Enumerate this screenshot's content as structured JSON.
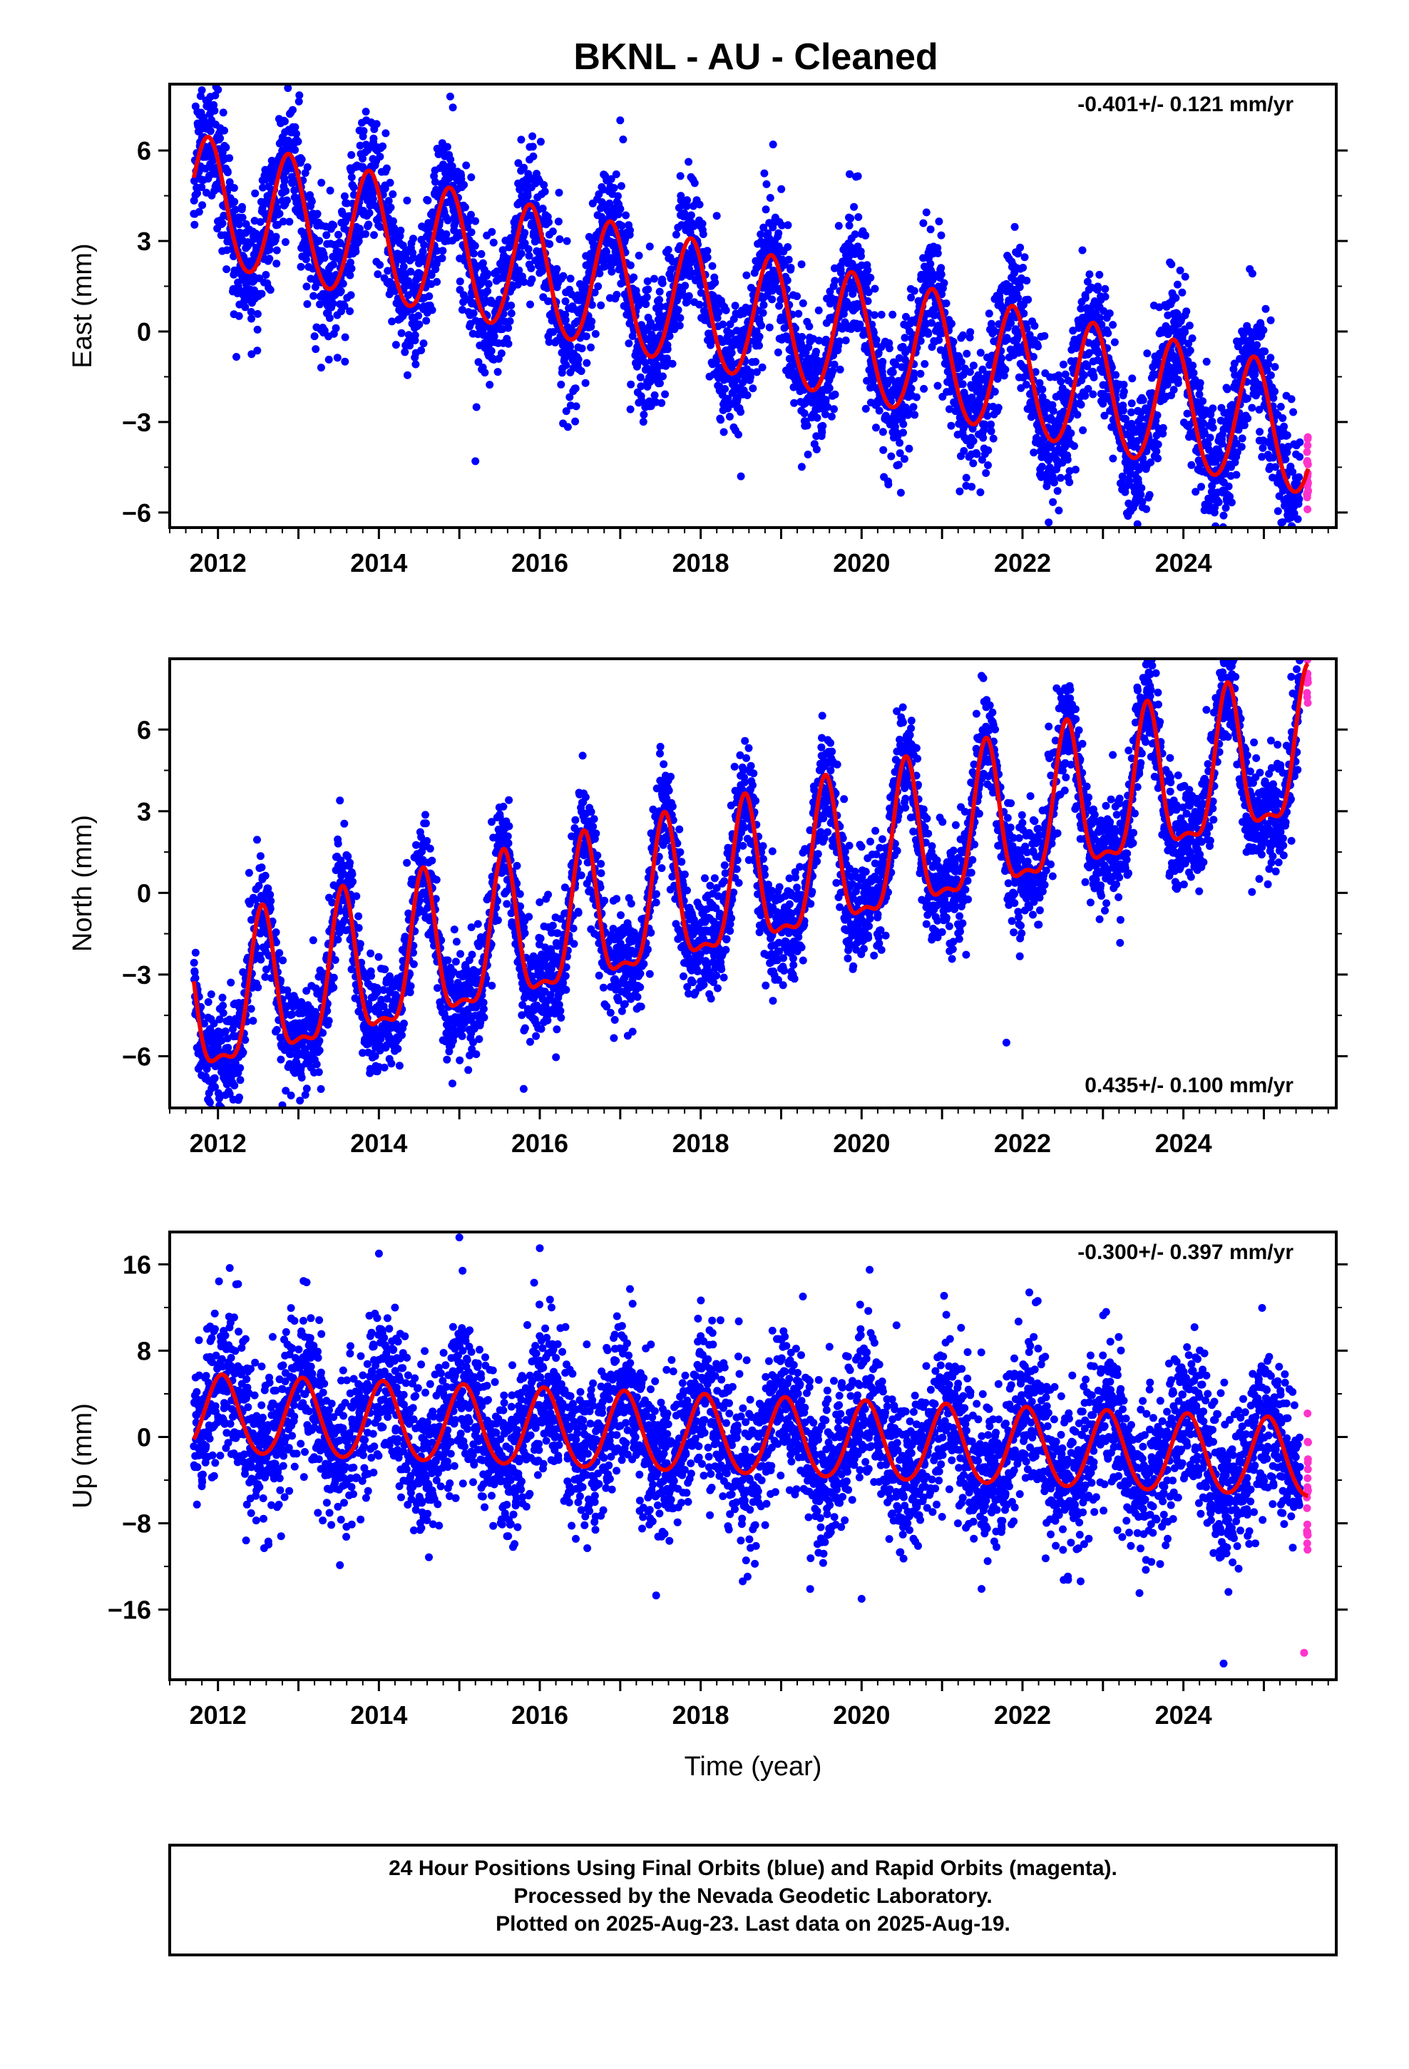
{
  "title": "BKNL  - AU - Cleaned",
  "colors": {
    "final": "#0000ff",
    "rapid": "#ff33cc",
    "model": "#ee0000"
  },
  "footer": {
    "lines": [
      "24 Hour Positions Using Final Orbits (blue) and Rapid Orbits (magenta).",
      "Processed by the Nevada Geodetic Laboratory.",
      "Plotted on 2025-Aug-23. Last data on 2025-Aug-19."
    ]
  },
  "chart_data": [
    {
      "type": "scatter",
      "component": "east",
      "ylabel": "East (mm)",
      "xlabel": "",
      "xlim": [
        2011.4,
        2025.9
      ],
      "ylim": [
        -6.5,
        8.2
      ],
      "yticks": [
        6,
        3,
        0,
        -3,
        -6
      ],
      "ytick_labels": [
        "6",
        "3",
        "0",
        "−3",
        "−6"
      ],
      "xticks": [
        2012,
        2014,
        2016,
        2018,
        2020,
        2022,
        2024
      ],
      "xtick_labels": [
        "2012",
        "2014",
        "2016",
        "2018",
        "2020",
        "2022",
        "2024"
      ],
      "rate_label": "-0.401+/- 0.121 mm/yr",
      "rate_position": "top-right",
      "data_start": 2011.7,
      "data_end": 2025.55,
      "rapid_start": 2025.45,
      "model": {
        "start_value": 4.3,
        "trend_mm_per_yr": -0.56,
        "annual_amplitude": 2.1,
        "annual_peak_phase": 0.88,
        "semiannual_amplitude": 0.15
      },
      "scatter_sigma": 1.1,
      "outliers": [
        [
          2011.8,
          8.0
        ],
        [
          2017.0,
          7.0
        ],
        [
          2018.9,
          6.2
        ],
        [
          2015.2,
          -4.3
        ],
        [
          2018.5,
          -4.8
        ],
        [
          2024.5,
          -6.1
        ]
      ]
    },
    {
      "type": "scatter",
      "component": "north",
      "ylabel": "North (mm)",
      "xlabel": "",
      "xlim": [
        2011.4,
        2025.9
      ],
      "ylim": [
        -7.9,
        8.6
      ],
      "yticks": [
        6,
        3,
        0,
        -3,
        -6
      ],
      "ytick_labels": [
        "6",
        "3",
        "0",
        "−3",
        "−6"
      ],
      "xticks": [
        2012,
        2014,
        2016,
        2018,
        2020,
        2022,
        2024
      ],
      "xtick_labels": [
        "2012",
        "2014",
        "2016",
        "2018",
        "2020",
        "2022",
        "2024"
      ],
      "rate_label": "0.435+/- 0.100 mm/yr",
      "rate_position": "bottom-right",
      "data_start": 2011.7,
      "data_end": 2025.55,
      "rapid_start": 2025.45,
      "model": {
        "start_value": -4.5,
        "trend_mm_per_yr": 0.68,
        "annual_amplitude": 2.6,
        "annual_peak_phase": 0.55,
        "semiannual_amplitude": 0.9
      },
      "scatter_sigma": 1.0,
      "outliers": [
        [
          2011.9,
          -7.7
        ],
        [
          2012.8,
          -7.8
        ],
        [
          2015.8,
          -7.2
        ],
        [
          2021.8,
          -5.5
        ],
        [
          2024.5,
          8.5
        ],
        [
          2023.5,
          7.9
        ]
      ]
    },
    {
      "type": "scatter",
      "component": "up",
      "ylabel": "Up (mm)",
      "xlabel": "Time (year)",
      "xlim": [
        2011.4,
        2025.9
      ],
      "ylim": [
        -22.5,
        19.0
      ],
      "yticks": [
        16,
        8,
        0,
        -8,
        -16
      ],
      "ytick_labels": [
        "16",
        "8",
        "0",
        "−8",
        "−16"
      ],
      "xticks": [
        2012,
        2014,
        2016,
        2018,
        2020,
        2022,
        2024
      ],
      "xtick_labels": [
        "2012",
        "2014",
        "2016",
        "2018",
        "2020",
        "2022",
        "2024"
      ],
      "rate_label": "-0.300+/- 0.397 mm/yr",
      "rate_position": "top-right",
      "data_start": 2011.7,
      "data_end": 2025.55,
      "rapid_start": 2025.45,
      "model": {
        "start_value": 2.0,
        "trend_mm_per_yr": -0.3,
        "annual_amplitude": 3.6,
        "annual_peak_phase": 0.05,
        "semiannual_amplitude": 0.3
      },
      "scatter_sigma": 3.6,
      "outliers": [
        [
          2015.0,
          18.5
        ],
        [
          2014.0,
          17.0
        ],
        [
          2016.0,
          17.5
        ],
        [
          2020.1,
          15.5
        ],
        [
          2020.0,
          -15.0
        ],
        [
          2024.5,
          -21.0
        ],
        [
          2025.5,
          -20.0
        ]
      ]
    }
  ]
}
